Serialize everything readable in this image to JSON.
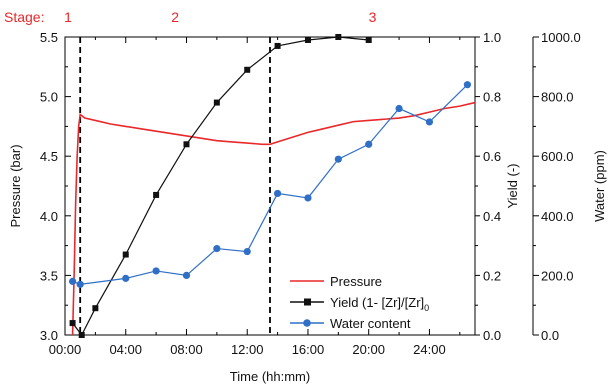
{
  "chart_data": {
    "type": "line",
    "stage_label": "Stage:",
    "stages": [
      "1",
      "2",
      "3"
    ],
    "stage_dividers_hours": [
      1.0,
      13.5
    ],
    "xlabel": "Time  (hh:mm)",
    "ylabel_left": "Pressure (bar)",
    "ylabel_right1": "Yield (-)",
    "ylabel_right2": "Water (ppm)",
    "xlim": [
      0,
      27
    ],
    "x_ticks": [
      {
        "value": 0,
        "label": "00:00"
      },
      {
        "value": 4,
        "label": "04:00"
      },
      {
        "value": 8,
        "label": "08:00"
      },
      {
        "value": 12,
        "label": "12:00"
      },
      {
        "value": 16,
        "label": "16:00"
      },
      {
        "value": 20,
        "label": "20:00"
      },
      {
        "value": 24,
        "label": "24:00"
      }
    ],
    "y_left": {
      "lim": [
        3.0,
        5.5
      ],
      "ticks": [
        "3.0",
        "3.5",
        "4.0",
        "4.5",
        "5.0",
        "5.5"
      ]
    },
    "y_right1": {
      "lim": [
        0.0,
        1.0
      ],
      "ticks": [
        "0.0",
        "0.2",
        "0.4",
        "0.6",
        "0.8",
        "1.0"
      ]
    },
    "y_right2": {
      "lim": [
        0,
        1000
      ],
      "ticks": [
        "0.0",
        "200.0",
        "400.0",
        "600.0",
        "800.0",
        "1000.0"
      ]
    },
    "legend_position": "lower-right",
    "series": [
      {
        "name": "Pressure",
        "axis": "left",
        "color": "#e8282b",
        "marker": "none",
        "x": [
          0.5,
          0.6,
          0.7,
          0.8,
          0.9,
          1.0,
          1.3,
          2,
          3,
          4,
          5,
          6,
          7,
          8,
          9,
          10,
          11,
          12,
          13,
          13.5,
          14,
          15,
          16,
          17,
          18,
          19,
          20,
          21,
          22,
          23,
          24,
          25,
          26,
          27
        ],
        "y": [
          3.0,
          3.5,
          4.1,
          4.5,
          4.75,
          4.85,
          4.82,
          4.8,
          4.77,
          4.75,
          4.73,
          4.71,
          4.69,
          4.67,
          4.65,
          4.63,
          4.62,
          4.61,
          4.6,
          4.6,
          4.62,
          4.66,
          4.7,
          4.73,
          4.76,
          4.79,
          4.8,
          4.81,
          4.82,
          4.84,
          4.87,
          4.9,
          4.92,
          4.95
        ]
      },
      {
        "name": "Yield (1- [Zr]/[Zr]",
        "name_subscript": "0",
        "axis": "right1",
        "color": "#111111",
        "marker": "square",
        "x": [
          0.5,
          1.1,
          2.0,
          4.0,
          6.0,
          8.0,
          10.0,
          12.0,
          14.0,
          16.0,
          18.0,
          20.0
        ],
        "y": [
          0.04,
          0.0,
          0.09,
          0.27,
          0.47,
          0.64,
          0.78,
          0.89,
          0.97,
          0.99,
          1.0,
          0.99
        ]
      },
      {
        "name": "Water content",
        "axis": "right2",
        "color": "#2f6fc6",
        "marker": "circle",
        "x": [
          0.5,
          1.0,
          4.0,
          6.0,
          8.0,
          10.0,
          12.0,
          14.0,
          16.0,
          18.0,
          20.0,
          22.0,
          24.0,
          26.5
        ],
        "y": [
          180,
          170,
          190,
          215,
          200,
          290,
          280,
          475,
          460,
          590,
          640,
          760,
          715,
          840
        ]
      }
    ]
  }
}
